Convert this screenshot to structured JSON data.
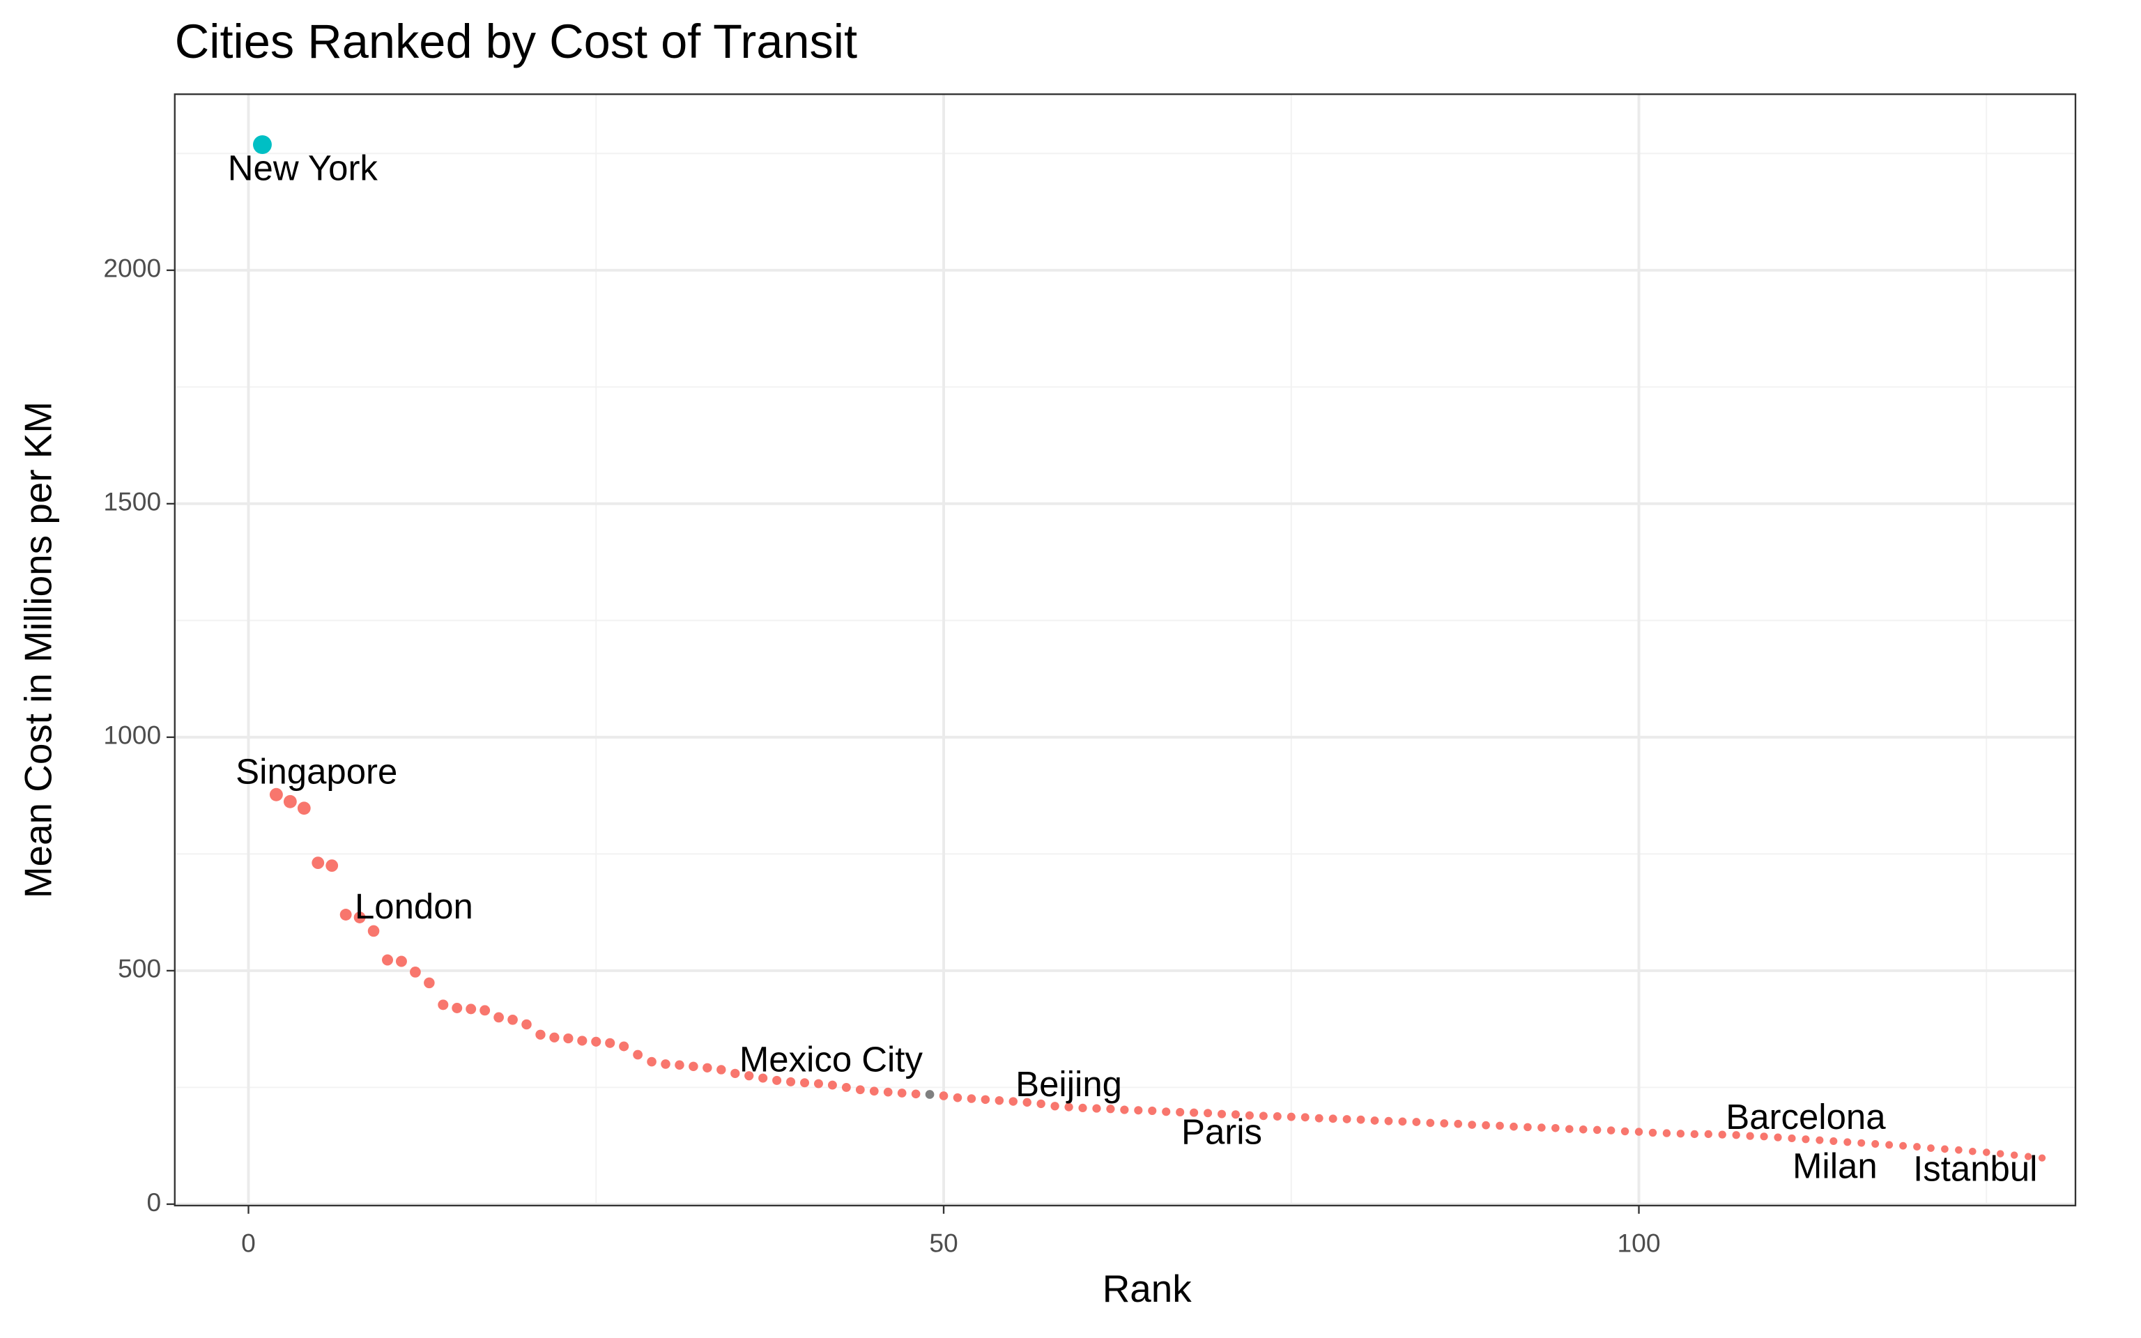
{
  "chart_data": {
    "type": "scatter",
    "title": "Cities Ranked by Cost of Transit",
    "x_label": "Rank",
    "y_label": "Mean Cost in Millions per KM",
    "xlim": [
      -5.3,
      131.4
    ],
    "ylim": [
      -3,
      2377
    ],
    "xticks": [
      0,
      50,
      100
    ],
    "yticks": [
      0,
      500,
      1000,
      1500,
      2000
    ],
    "x_minor_grid": [
      25,
      75,
      125
    ],
    "y_minor_grid": [
      250,
      750,
      1250,
      1750,
      2250
    ],
    "grid": true,
    "series": [
      {
        "color": "#00BFC4",
        "x": [
          1
        ],
        "values": [
          2269
        ]
      },
      {
        "color": "#F8766D",
        "x": [
          2,
          3,
          4,
          5,
          6,
          7,
          8,
          9,
          10,
          11,
          12,
          13,
          14,
          15,
          16,
          17,
          18,
          19,
          20,
          21,
          22,
          23,
          24,
          25,
          26,
          27,
          28,
          29,
          30,
          31,
          32,
          33,
          34,
          35,
          36,
          37,
          38,
          39,
          40,
          41,
          42,
          43,
          44,
          45,
          46,
          47,
          48,
          50,
          51,
          52,
          53,
          54,
          55,
          56,
          57,
          58,
          59,
          60,
          61,
          62,
          63,
          64,
          65,
          66,
          67,
          68,
          69,
          70,
          71,
          72,
          73,
          74,
          75,
          76,
          77,
          78,
          79,
          80,
          81,
          82,
          83,
          84,
          85,
          86,
          87,
          88,
          89,
          90,
          91,
          92,
          93,
          94,
          95,
          96,
          97,
          98,
          99,
          100,
          101,
          102,
          103,
          104,
          105,
          106,
          107,
          108,
          109,
          110,
          111,
          112,
          113,
          114,
          115,
          116,
          117,
          118,
          119,
          120,
          121,
          122,
          123,
          124,
          125,
          126,
          127,
          128,
          129
        ],
        "values": [
          877,
          862,
          848,
          731,
          725,
          620,
          614,
          585,
          523,
          520,
          497,
          474,
          427,
          420,
          418,
          415,
          400,
          395,
          385,
          363,
          357,
          355,
          350,
          348,
          345,
          338,
          320,
          305,
          300,
          298,
          295,
          292,
          288,
          280,
          275,
          270,
          265,
          262,
          260,
          258,
          255,
          250,
          245,
          242,
          240,
          238,
          236,
          232,
          228,
          226,
          224,
          222,
          220,
          218,
          215,
          210,
          208,
          206,
          205,
          204,
          202,
          201,
          200,
          198,
          197,
          196,
          195,
          193,
          192,
          190,
          189,
          188,
          187,
          186,
          184,
          183,
          182,
          181,
          179,
          178,
          177,
          176,
          174,
          173,
          172,
          170,
          169,
          168,
          166,
          165,
          164,
          163,
          161,
          160,
          159,
          158,
          156,
          155,
          153,
          152,
          151,
          150,
          150,
          149,
          148,
          146,
          145,
          143,
          141,
          139,
          137,
          135,
          133,
          131,
          129,
          127,
          125,
          123,
          120,
          118,
          116,
          113,
          111,
          108,
          105,
          102,
          99
        ]
      },
      {
        "color": "#808080",
        "x": [
          49
        ],
        "values": [
          235
        ]
      }
    ],
    "annotations": [
      {
        "text": "New York",
        "x": 3.9,
        "y": 2213
      },
      {
        "text": "Singapore",
        "x": 4.9,
        "y": 921
      },
      {
        "text": "London",
        "x": 11.9,
        "y": 632
      },
      {
        "text": "Mexico City",
        "x": 41.9,
        "y": 304
      },
      {
        "text": "Beijing",
        "x": 59,
        "y": 251
      },
      {
        "text": "Paris",
        "x": 70,
        "y": 149
      },
      {
        "text": "Barcelona",
        "x": 112,
        "y": 181
      },
      {
        "text": "Milan",
        "x": 114.1,
        "y": 76
      },
      {
        "text": "Istanbul",
        "x": 124.2,
        "y": 70
      }
    ]
  }
}
